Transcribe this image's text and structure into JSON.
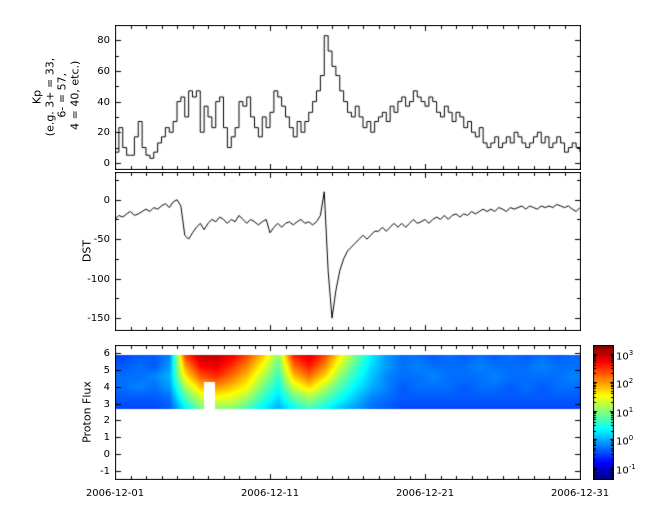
{
  "figure": {
    "background": "#ffffff",
    "line_color": "#000000",
    "frame_color": "#000000"
  },
  "axes": {
    "kp_label": "Kp\n(e.g. 3+ = 33,\n 6- = 57,\n 4 = 40, etc.)",
    "dst_label": "DST",
    "flux_label": "Proton Flux"
  },
  "xaxis": {
    "range_days": [
      0,
      30
    ],
    "tick_positions_days": [
      0,
      10,
      20,
      30
    ],
    "tick_labels": [
      "2006-12-01",
      "2006-12-11",
      "2006-12-21",
      "2006-12-31"
    ],
    "minor_tick_every_days": 1
  },
  "chart_data": [
    {
      "id": "kp",
      "type": "line",
      "step": true,
      "ylabel": "Kp (e.g. 3+ = 33, 6- = 57, 4 = 40, etc.)",
      "dt_days": 0.25,
      "ylim": [
        -4,
        90
      ],
      "yticks": [
        0,
        20,
        40,
        60,
        80
      ],
      "yminor": 10,
      "values": [
        7,
        23,
        10,
        5,
        5,
        17,
        27,
        10,
        5,
        3,
        7,
        13,
        17,
        23,
        20,
        27,
        40,
        43,
        30,
        47,
        43,
        47,
        20,
        37,
        30,
        23,
        40,
        43,
        23,
        10,
        17,
        23,
        40,
        37,
        43,
        30,
        23,
        17,
        30,
        23,
        33,
        47,
        43,
        37,
        30,
        23,
        17,
        27,
        20,
        27,
        33,
        40,
        47,
        57,
        83,
        73,
        63,
        57,
        47,
        40,
        33,
        30,
        37,
        30,
        23,
        27,
        20,
        27,
        30,
        33,
        27,
        37,
        33,
        40,
        43,
        37,
        40,
        47,
        43,
        40,
        37,
        43,
        40,
        33,
        30,
        37,
        33,
        27,
        33,
        30,
        23,
        27,
        20,
        17,
        23,
        13,
        10,
        13,
        17,
        10,
        13,
        17,
        13,
        20,
        17,
        13,
        10,
        13,
        17,
        20,
        13,
        17,
        10,
        13,
        17,
        13,
        7,
        10,
        13,
        10,
        7,
        5,
        8,
        7
      ]
    },
    {
      "id": "dst",
      "type": "line",
      "step": false,
      "ylabel": "DST",
      "dt_days": 0.25,
      "ylim": [
        -165,
        35
      ],
      "yticks": [
        0,
        -50,
        -100,
        -150
      ],
      "yminor": 25,
      "values": [
        -25,
        -20,
        -22,
        -18,
        -15,
        -20,
        -18,
        -15,
        -12,
        -15,
        -10,
        -12,
        -8,
        -5,
        -10,
        -3,
        0,
        -8,
        -45,
        -50,
        -42,
        -35,
        -30,
        -38,
        -30,
        -25,
        -28,
        -22,
        -25,
        -30,
        -25,
        -28,
        -20,
        -25,
        -30,
        -25,
        -28,
        -32,
        -28,
        -25,
        -42,
        -35,
        -30,
        -35,
        -30,
        -28,
        -32,
        -28,
        -25,
        -30,
        -28,
        -32,
        -28,
        -20,
        10,
        -90,
        -150,
        -115,
        -90,
        -75,
        -65,
        -60,
        -55,
        -50,
        -45,
        -50,
        -45,
        -40,
        -40,
        -35,
        -40,
        -35,
        -30,
        -35,
        -30,
        -35,
        -30,
        -25,
        -30,
        -28,
        -25,
        -30,
        -25,
        -22,
        -25,
        -20,
        -25,
        -20,
        -18,
        -22,
        -18,
        -20,
        -15,
        -18,
        -15,
        -12,
        -15,
        -12,
        -15,
        -10,
        -12,
        -15,
        -10,
        -12,
        -10,
        -8,
        -12,
        -8,
        -10,
        -12,
        -8,
        -10,
        -8,
        -10,
        -6,
        -8,
        -10,
        -8,
        -12,
        -15,
        -10,
        -8,
        -10,
        -6
      ]
    },
    {
      "id": "flux",
      "type": "heatmap",
      "ylabel": "Proton Flux",
      "ylim": [
        -1.5,
        6.5
      ],
      "yticks": [
        -1,
        0,
        1,
        2,
        3,
        4,
        5,
        6
      ],
      "band": [
        2.75,
        5.9
      ],
      "clim": [
        -1.4,
        3.3
      ],
      "colormap": "jet",
      "columns_daily_log10_flux_top_to_bottom": [
        [
          -0.5,
          -0.4,
          -0.3,
          -0.3,
          -0.4,
          -0.5
        ],
        [
          -0.4,
          -0.3,
          -0.3,
          -0.2,
          -0.4,
          -0.5
        ],
        [
          -0.4,
          -0.4,
          -0.2,
          -0.3,
          -0.4,
          -0.5
        ],
        [
          -0.2,
          -0.1,
          0.0,
          -0.1,
          -0.3,
          -0.4
        ],
        [
          2.4,
          2.0,
          1.6,
          1.1,
          0.7,
          0.3
        ],
        [
          3.0,
          2.7,
          2.3,
          1.8,
          1.3,
          0.9
        ],
        [
          3.0,
          2.8,
          2.5,
          2.0,
          1.5,
          1.0
        ],
        [
          2.8,
          2.5,
          2.2,
          1.8,
          1.4,
          1.0
        ],
        [
          2.4,
          2.1,
          1.8,
          1.5,
          1.1,
          0.7
        ],
        [
          1.8,
          1.5,
          1.2,
          0.9,
          0.6,
          0.3
        ],
        [
          1.0,
          0.8,
          0.6,
          0.4,
          0.2,
          0.0
        ],
        [
          2.6,
          2.2,
          1.8,
          1.3,
          0.8,
          0.4
        ],
        [
          2.9,
          2.6,
          2.2,
          1.7,
          1.1,
          0.7
        ],
        [
          2.4,
          2.1,
          1.7,
          1.2,
          0.8,
          0.4
        ],
        [
          1.6,
          1.3,
          1.0,
          0.7,
          0.4,
          0.1
        ],
        [
          0.9,
          0.7,
          0.5,
          0.3,
          0.1,
          -0.1
        ],
        [
          0.3,
          0.2,
          0.1,
          0.0,
          -0.2,
          -0.3
        ],
        [
          -0.1,
          -0.1,
          -0.2,
          -0.2,
          -0.3,
          -0.4
        ],
        [
          -0.3,
          -0.3,
          -0.3,
          -0.4,
          -0.4,
          -0.5
        ],
        [
          -0.3,
          -0.2,
          -0.3,
          -0.3,
          -0.4,
          -0.5
        ],
        [
          -0.4,
          -0.3,
          -0.2,
          -0.3,
          -0.4,
          -0.5
        ],
        [
          -0.3,
          -0.3,
          -0.3,
          -0.3,
          -0.4,
          -0.5
        ],
        [
          -0.4,
          -0.3,
          -0.3,
          -0.4,
          -0.4,
          -0.5
        ],
        [
          -0.3,
          -0.2,
          -0.3,
          -0.3,
          -0.4,
          -0.5
        ],
        [
          -0.4,
          -0.3,
          -0.2,
          -0.3,
          -0.4,
          -0.5
        ],
        [
          -0.3,
          -0.3,
          -0.3,
          -0.4,
          -0.4,
          -0.5
        ],
        [
          -0.4,
          -0.3,
          -0.3,
          -0.3,
          -0.4,
          -0.5
        ],
        [
          -0.3,
          -0.2,
          -0.3,
          -0.4,
          -0.4,
          -0.5
        ],
        [
          -0.4,
          -0.3,
          -0.3,
          -0.3,
          -0.4,
          -0.5
        ],
        [
          -0.3,
          -0.3,
          -0.2,
          -0.3,
          -0.4,
          -0.5
        ],
        [
          -0.4,
          -0.3,
          -0.3,
          -0.4,
          -0.4,
          -0.5
        ]
      ],
      "gaps": [
        {
          "t0": 5.7,
          "t1": 6.45,
          "y_top": 4.3
        }
      ],
      "colorbar": {
        "scale": "log",
        "tick_exponents": [
          3,
          2,
          1,
          0,
          -1
        ],
        "tick_labels": [
          "10^3",
          "10^2",
          "10^1",
          "10^0",
          "10^-1"
        ]
      }
    }
  ]
}
